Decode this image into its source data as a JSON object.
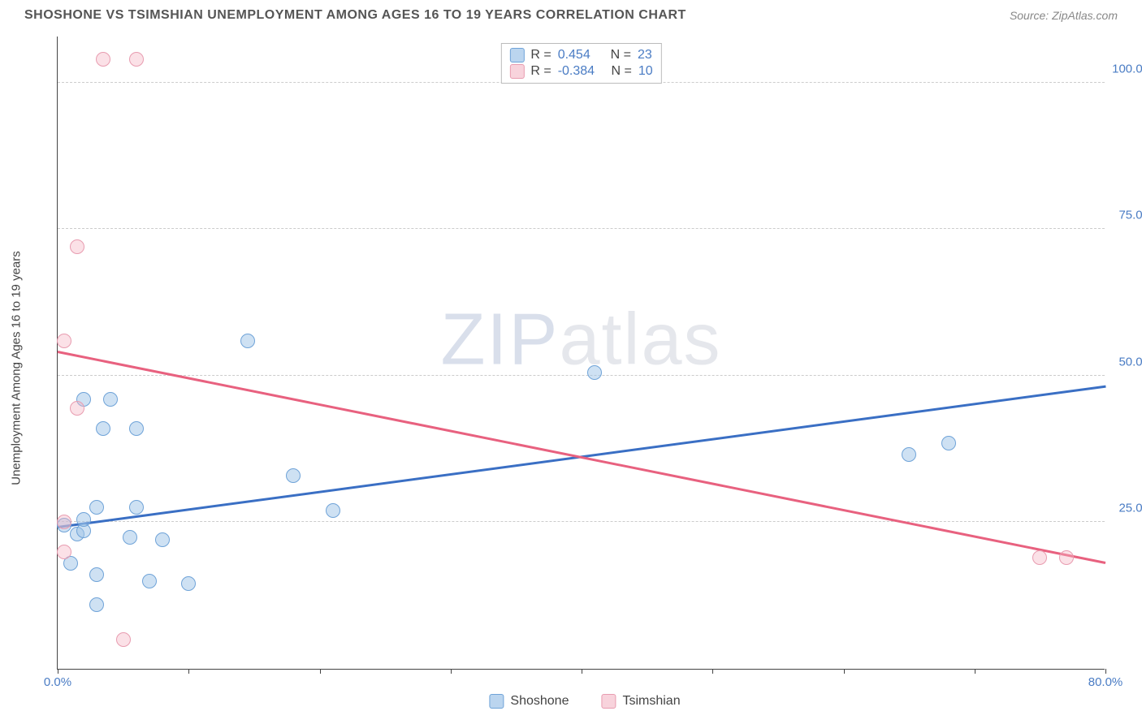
{
  "title": "SHOSHONE VS TSIMSHIAN UNEMPLOYMENT AMONG AGES 16 TO 19 YEARS CORRELATION CHART",
  "source": "Source: ZipAtlas.com",
  "ylabel": "Unemployment Among Ages 16 to 19 years",
  "watermark_zip": "ZIP",
  "watermark_atlas": "atlas",
  "chart": {
    "type": "scatter",
    "xlim": [
      0,
      80
    ],
    "ylim": [
      0,
      108
    ],
    "y_ticks": [
      25,
      50,
      75,
      100
    ],
    "y_tick_labels": [
      "25.0%",
      "50.0%",
      "75.0%",
      "100.0%"
    ],
    "x_ticks": [
      0,
      10,
      20,
      30,
      40,
      50,
      60,
      70,
      80
    ],
    "x_tick_labels_shown": {
      "0": "0.0%",
      "80": "80.0%"
    },
    "background_color": "#ffffff",
    "grid_color": "#cccccc",
    "series": [
      {
        "name": "Shoshone",
        "color_fill": "rgba(158,195,232,0.5)",
        "color_stroke": "#6fa3d8",
        "trend_color": "#3a6fc4",
        "R": "0.454",
        "N": "23",
        "trend": {
          "x1": 0,
          "y1": 24,
          "x2": 80,
          "y2": 48
        },
        "points": [
          [
            2,
            46
          ],
          [
            4,
            46
          ],
          [
            14.5,
            56
          ],
          [
            3.5,
            41
          ],
          [
            6,
            41
          ],
          [
            1.5,
            23
          ],
          [
            2,
            23.5
          ],
          [
            3,
            27.5
          ],
          [
            6,
            27.5
          ],
          [
            5.5,
            22.5
          ],
          [
            8,
            22
          ],
          [
            1,
            18
          ],
          [
            3,
            16
          ],
          [
            7,
            15
          ],
          [
            10,
            14.5
          ],
          [
            3,
            11
          ],
          [
            18,
            33
          ],
          [
            21,
            27
          ],
          [
            41,
            50.5
          ],
          [
            65,
            36.5
          ],
          [
            68,
            38.5
          ],
          [
            0.5,
            24.5
          ],
          [
            2,
            25.5
          ]
        ]
      },
      {
        "name": "Tsimshian",
        "color_fill": "rgba(244,181,196,0.4)",
        "color_stroke": "#e89cb0",
        "trend_color": "#e8617f",
        "R": "-0.384",
        "N": "10",
        "trend": {
          "x1": 0,
          "y1": 54,
          "x2": 80,
          "y2": 18
        },
        "points": [
          [
            3.5,
            104
          ],
          [
            6,
            104
          ],
          [
            1.5,
            72
          ],
          [
            0.5,
            56
          ],
          [
            1.5,
            44.5
          ],
          [
            0.5,
            25
          ],
          [
            0.5,
            20
          ],
          [
            5,
            5
          ],
          [
            75,
            19
          ],
          [
            77,
            19
          ]
        ]
      }
    ]
  },
  "stats_labels": {
    "R": "R =",
    "N": "N ="
  }
}
